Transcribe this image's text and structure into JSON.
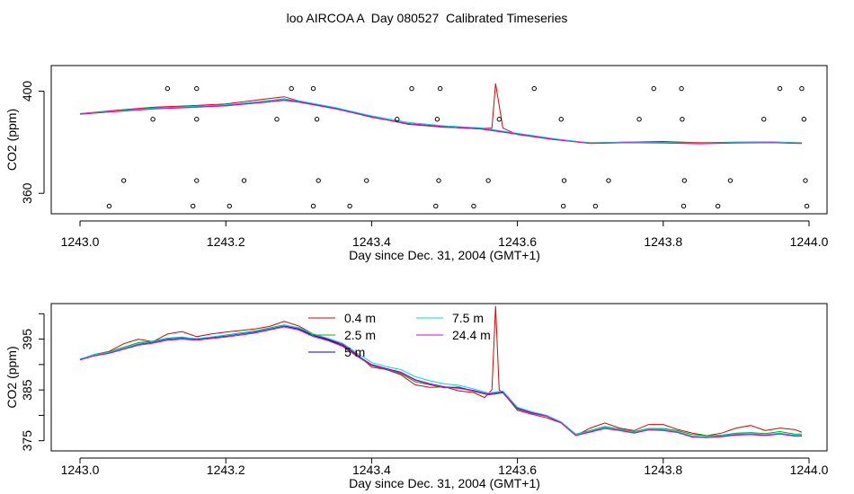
{
  "title": "loo AIRCOA A  Day 080527  Calibrated Timeseries",
  "colors": {
    "series_0_4m": "#e00000",
    "series_2_5m": "#00b000",
    "series_5m": "#0000e0",
    "series_7_5m": "#00d8d8",
    "series_24_4m": "#e000e0",
    "axis": "#000000"
  },
  "chart_data": [
    {
      "type": "line+scatter",
      "xlabel": "Day since Dec. 31, 2004 (GMT+1)",
      "ylabel": "CO2 (ppm)",
      "xlim": [
        1243.0,
        1244.0
      ],
      "ylim": [
        352,
        410
      ],
      "xticks": [
        1243.0,
        1243.2,
        1243.4,
        1243.6,
        1243.8,
        1244.0
      ],
      "xtick_labels": [
        "1243.0",
        "1243.2",
        "1243.4",
        "1243.6",
        "1243.8",
        "1244.0"
      ],
      "yticks": [
        360,
        400
      ],
      "ytick_labels": [
        "360",
        "400"
      ],
      "legend": null,
      "series": [
        {
          "name": "0.4 m",
          "x": [
            1243.0,
            1243.05,
            1243.1,
            1243.15,
            1243.2,
            1243.25,
            1243.28,
            1243.3,
            1243.35,
            1243.4,
            1243.45,
            1243.5,
            1243.55,
            1243.565,
            1243.57,
            1243.58,
            1243.6,
            1243.65,
            1243.7,
            1243.75,
            1243.8,
            1243.85,
            1243.9,
            1243.95,
            1243.99
          ],
          "y": [
            391.2,
            392.5,
            393.7,
            394.3,
            395.0,
            396.8,
            397.8,
            396.2,
            393.5,
            390.0,
            387.0,
            385.8,
            385.5,
            385.5,
            403.0,
            385.5,
            383.0,
            381.0,
            379.8,
            380.0,
            380.3,
            379.8,
            380.0,
            380.1,
            379.8
          ]
        },
        {
          "name": "2.5 m",
          "x": [
            1243.0,
            1243.05,
            1243.1,
            1243.15,
            1243.2,
            1243.25,
            1243.28,
            1243.3,
            1243.35,
            1243.4,
            1243.45,
            1243.5,
            1243.55,
            1243.6,
            1243.65,
            1243.7,
            1243.75,
            1243.8,
            1243.85,
            1243.9,
            1243.95,
            1243.99
          ],
          "y": [
            391.2,
            392.3,
            393.4,
            393.9,
            394.5,
            396.0,
            397.0,
            396.0,
            393.3,
            389.9,
            387.2,
            386.0,
            385.2,
            383.2,
            381.2,
            379.7,
            380.0,
            379.9,
            379.6,
            379.9,
            380.0,
            379.7
          ]
        },
        {
          "name": "5 m",
          "x": [
            1243.0,
            1243.05,
            1243.1,
            1243.15,
            1243.2,
            1243.25,
            1243.28,
            1243.3,
            1243.35,
            1243.4,
            1243.45,
            1243.5,
            1243.55,
            1243.6,
            1243.65,
            1243.7,
            1243.75,
            1243.8,
            1243.85,
            1243.9,
            1243.95,
            1243.99
          ],
          "y": [
            391.0,
            392.1,
            393.2,
            393.8,
            394.4,
            395.8,
            396.8,
            395.9,
            393.2,
            389.8,
            387.3,
            386.1,
            385.3,
            383.3,
            381.3,
            379.6,
            379.9,
            379.8,
            379.5,
            379.8,
            379.9,
            379.6
          ]
        },
        {
          "name": "7.5 m",
          "x": [
            1243.0,
            1243.05,
            1243.1,
            1243.15,
            1243.2,
            1243.25,
            1243.28,
            1243.3,
            1243.35,
            1243.4,
            1243.45,
            1243.5,
            1243.55,
            1243.6,
            1243.65,
            1243.7,
            1243.75,
            1243.8,
            1243.85,
            1243.9,
            1243.95,
            1243.99
          ],
          "y": [
            391.1,
            392.2,
            393.3,
            393.9,
            394.6,
            395.9,
            396.9,
            396.1,
            393.6,
            390.3,
            387.8,
            386.4,
            385.6,
            383.5,
            381.4,
            379.7,
            380.0,
            379.9,
            379.6,
            379.9,
            380.0,
            379.7
          ]
        },
        {
          "name": "24.4 m",
          "x": [
            1243.0,
            1243.05,
            1243.1,
            1243.15,
            1243.2,
            1243.25,
            1243.28,
            1243.3,
            1243.35,
            1243.4,
            1243.45,
            1243.5,
            1243.55,
            1243.6,
            1243.65,
            1243.7,
            1243.75,
            1243.8,
            1243.85,
            1243.9,
            1243.95,
            1243.99
          ],
          "y": [
            391.0,
            392.0,
            393.0,
            393.6,
            394.2,
            395.5,
            396.4,
            395.7,
            393.1,
            389.9,
            387.3,
            386.0,
            385.2,
            383.1,
            381.1,
            379.5,
            379.8,
            379.7,
            379.4,
            379.7,
            379.8,
            379.5
          ]
        }
      ],
      "markers": {
        "x": [
          1243.04,
          1243.06,
          1243.1,
          1243.12,
          1243.155,
          1243.16,
          1243.16,
          1243.16,
          1243.205,
          1243.225,
          1243.27,
          1243.29,
          1243.32,
          1243.32,
          1243.325,
          1243.327,
          1243.37,
          1243.393,
          1243.435,
          1243.455,
          1243.488,
          1243.49,
          1243.492,
          1243.494,
          1243.54,
          1243.56,
          1243.575,
          1243.623,
          1243.66,
          1243.663,
          1243.664,
          1243.707,
          1243.725,
          1243.767,
          1243.787,
          1243.825,
          1243.826,
          1243.828,
          1243.829,
          1243.875,
          1243.892,
          1243.938,
          1243.96,
          1243.99,
          1243.993,
          1243.995,
          1243.997
        ],
        "y": [
          355,
          365,
          389,
          401,
          355,
          401,
          365,
          389,
          355,
          365,
          389,
          401,
          401,
          355,
          389,
          365,
          355,
          365,
          389,
          401,
          355,
          389,
          365,
          401,
          355,
          365,
          389,
          401,
          389,
          355,
          365,
          355,
          365,
          389,
          401,
          401,
          389,
          355,
          365,
          355,
          365,
          389,
          401,
          401,
          389,
          365,
          355
        ]
      }
    },
    {
      "type": "line",
      "xlabel": "Day since Dec. 31, 2004 (GMT+1)",
      "ylabel": "CO2 (ppm)",
      "xlim": [
        1243.0,
        1244.0
      ],
      "ylim": [
        373,
        402
      ],
      "xticks": [
        1243.0,
        1243.2,
        1243.4,
        1243.6,
        1243.8,
        1244.0
      ],
      "xtick_labels": [
        "1243.0",
        "1243.2",
        "1243.4",
        "1243.6",
        "1243.8",
        "1244.0"
      ],
      "yticks": [
        375,
        380,
        385,
        390,
        395,
        400
      ],
      "ytick_labels": [
        "375",
        "",
        "385",
        "",
        "395",
        ""
      ],
      "legend": "top-center",
      "series": [
        {
          "name": "0.4 m",
          "x": [
            1243.0,
            1243.02,
            1243.04,
            1243.06,
            1243.08,
            1243.1,
            1243.12,
            1243.14,
            1243.16,
            1243.18,
            1243.2,
            1243.22,
            1243.24,
            1243.26,
            1243.28,
            1243.3,
            1243.32,
            1243.34,
            1243.36,
            1243.38,
            1243.4,
            1243.42,
            1243.44,
            1243.46,
            1243.48,
            1243.5,
            1243.52,
            1243.54,
            1243.555,
            1243.565,
            1243.57,
            1243.575,
            1243.58,
            1243.6,
            1243.62,
            1243.64,
            1243.66,
            1243.68,
            1243.7,
            1243.72,
            1243.74,
            1243.76,
            1243.78,
            1243.8,
            1243.82,
            1243.84,
            1243.86,
            1243.88,
            1243.9,
            1243.92,
            1243.94,
            1243.96,
            1243.98,
            1243.99
          ],
          "y": [
            391.0,
            392.0,
            392.6,
            394.1,
            395.0,
            394.5,
            396.0,
            396.5,
            395.5,
            396.0,
            396.4,
            396.7,
            397.0,
            397.5,
            398.5,
            397.6,
            396.0,
            395.0,
            394.0,
            392.0,
            389.5,
            389.0,
            388.0,
            386.0,
            385.5,
            385.6,
            384.8,
            384.5,
            383.5,
            385.0,
            401.5,
            385.0,
            384.5,
            381.0,
            380.2,
            379.5,
            378.5,
            376.0,
            377.5,
            378.5,
            377.5,
            377.0,
            378.2,
            378.2,
            377.2,
            376.5,
            376.0,
            376.5,
            377.5,
            378.0,
            377.0,
            377.5,
            377.2,
            376.7
          ]
        },
        {
          "name": "2.5 m",
          "x": [
            1243.0,
            1243.02,
            1243.04,
            1243.06,
            1243.08,
            1243.1,
            1243.12,
            1243.14,
            1243.16,
            1243.18,
            1243.2,
            1243.22,
            1243.24,
            1243.26,
            1243.28,
            1243.3,
            1243.32,
            1243.34,
            1243.36,
            1243.38,
            1243.4,
            1243.42,
            1243.44,
            1243.46,
            1243.48,
            1243.5,
            1243.52,
            1243.54,
            1243.56,
            1243.58,
            1243.6,
            1243.62,
            1243.64,
            1243.66,
            1243.68,
            1243.7,
            1243.72,
            1243.74,
            1243.76,
            1243.78,
            1243.8,
            1243.82,
            1243.84,
            1243.86,
            1243.88,
            1243.9,
            1243.92,
            1243.94,
            1243.96,
            1243.98,
            1243.99
          ],
          "y": [
            391.0,
            392.0,
            392.5,
            393.4,
            394.3,
            394.6,
            395.2,
            395.4,
            395.0,
            395.4,
            395.8,
            396.2,
            396.6,
            397.2,
            397.8,
            397.2,
            395.8,
            394.8,
            393.6,
            391.6,
            389.8,
            389.0,
            388.2,
            386.6,
            386.0,
            385.4,
            385.6,
            384.7,
            384.0,
            384.4,
            381.2,
            380.4,
            379.8,
            378.7,
            376.3,
            377.0,
            377.8,
            377.3,
            376.8,
            377.4,
            377.4,
            377.0,
            376.2,
            376.0,
            376.1,
            376.5,
            376.6,
            376.4,
            376.8,
            376.3,
            376.3
          ]
        },
        {
          "name": "5 m",
          "x": [
            1243.0,
            1243.02,
            1243.04,
            1243.06,
            1243.08,
            1243.1,
            1243.12,
            1243.14,
            1243.16,
            1243.18,
            1243.2,
            1243.22,
            1243.24,
            1243.26,
            1243.28,
            1243.3,
            1243.32,
            1243.34,
            1243.36,
            1243.38,
            1243.4,
            1243.42,
            1243.44,
            1243.46,
            1243.48,
            1243.5,
            1243.52,
            1243.54,
            1243.56,
            1243.58,
            1243.6,
            1243.62,
            1243.64,
            1243.66,
            1243.68,
            1243.7,
            1243.72,
            1243.74,
            1243.76,
            1243.78,
            1243.8,
            1243.82,
            1243.84,
            1243.86,
            1243.88,
            1243.9,
            1243.92,
            1243.94,
            1243.96,
            1243.98,
            1243.99
          ],
          "y": [
            391.0,
            391.8,
            392.3,
            393.1,
            394.0,
            394.4,
            395.0,
            395.2,
            395.0,
            395.3,
            395.6,
            396.0,
            396.4,
            397.0,
            397.6,
            397.0,
            395.7,
            394.9,
            393.8,
            391.8,
            390.0,
            389.2,
            388.5,
            387.0,
            386.2,
            385.6,
            385.4,
            384.9,
            384.2,
            384.6,
            381.4,
            380.5,
            379.9,
            378.6,
            376.1,
            376.8,
            377.5,
            377.1,
            376.6,
            377.2,
            377.1,
            376.7,
            375.8,
            375.7,
            375.9,
            376.2,
            376.3,
            376.1,
            376.4,
            376.0,
            376.0
          ]
        },
        {
          "name": "7.5 m",
          "x": [
            1243.0,
            1243.02,
            1243.04,
            1243.06,
            1243.08,
            1243.1,
            1243.12,
            1243.14,
            1243.16,
            1243.18,
            1243.2,
            1243.22,
            1243.24,
            1243.26,
            1243.28,
            1243.3,
            1243.32,
            1243.34,
            1243.36,
            1243.38,
            1243.4,
            1243.42,
            1243.44,
            1243.46,
            1243.48,
            1243.5,
            1243.52,
            1243.54,
            1243.56,
            1243.58,
            1243.6,
            1243.62,
            1243.64,
            1243.66,
            1243.68,
            1243.7,
            1243.72,
            1243.74,
            1243.76,
            1243.78,
            1243.8,
            1243.82,
            1243.84,
            1243.86,
            1243.88,
            1243.9,
            1243.92,
            1243.94,
            1243.96,
            1243.98,
            1243.99
          ],
          "y": [
            391.1,
            391.9,
            392.4,
            393.2,
            394.1,
            394.5,
            395.1,
            395.3,
            395.1,
            395.4,
            395.7,
            396.1,
            396.5,
            397.1,
            397.7,
            397.3,
            396.0,
            395.2,
            394.2,
            392.3,
            390.4,
            389.6,
            389.0,
            387.6,
            386.8,
            386.2,
            385.9,
            385.2,
            384.4,
            384.8,
            381.6,
            380.7,
            380.0,
            378.7,
            376.2,
            376.9,
            377.6,
            377.2,
            376.7,
            377.3,
            377.2,
            376.8,
            375.9,
            375.8,
            376.0,
            376.3,
            376.4,
            376.2,
            376.5,
            376.1,
            376.1
          ]
        },
        {
          "name": "24.4 m",
          "x": [
            1243.0,
            1243.02,
            1243.04,
            1243.06,
            1243.08,
            1243.1,
            1243.12,
            1243.14,
            1243.16,
            1243.18,
            1243.2,
            1243.22,
            1243.24,
            1243.26,
            1243.28,
            1243.3,
            1243.32,
            1243.34,
            1243.36,
            1243.38,
            1243.4,
            1243.42,
            1243.44,
            1243.46,
            1243.48,
            1243.5,
            1243.52,
            1243.54,
            1243.56,
            1243.58,
            1243.6,
            1243.62,
            1243.64,
            1243.66,
            1243.68,
            1243.7,
            1243.72,
            1243.74,
            1243.76,
            1243.78,
            1243.8,
            1243.82,
            1243.84,
            1243.86,
            1243.88,
            1243.9,
            1243.92,
            1243.94,
            1243.96,
            1243.98,
            1243.99
          ],
          "y": [
            390.9,
            391.7,
            392.2,
            393.0,
            393.8,
            394.2,
            394.8,
            395.0,
            394.8,
            395.1,
            395.4,
            395.8,
            396.2,
            396.8,
            397.4,
            396.8,
            395.5,
            394.7,
            393.6,
            391.7,
            389.9,
            389.1,
            388.4,
            386.9,
            386.1,
            385.5,
            385.3,
            384.8,
            384.1,
            384.5,
            381.3,
            380.4,
            379.8,
            378.5,
            376.0,
            376.7,
            377.4,
            377.0,
            376.5,
            377.1,
            377.0,
            376.6,
            375.7,
            375.6,
            375.8,
            376.1,
            376.2,
            376.0,
            376.3,
            375.9,
            375.9
          ]
        }
      ]
    }
  ]
}
